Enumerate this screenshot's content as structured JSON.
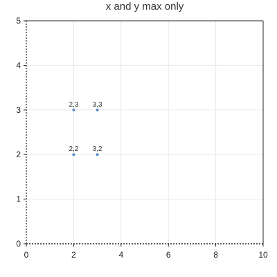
{
  "chart_data": {
    "type": "scatter",
    "title": "x and y max only",
    "xlabel": "",
    "ylabel": "",
    "xlim": [
      0,
      10
    ],
    "ylim": [
      0,
      5
    ],
    "x_ticks": [
      0,
      2,
      4,
      6,
      8,
      10
    ],
    "y_ticks": [
      0,
      1,
      2,
      3,
      4,
      5
    ],
    "grid": true,
    "series": [
      {
        "points": [
          {
            "x": 2,
            "y": 3,
            "label": "2,3"
          },
          {
            "x": 3,
            "y": 3,
            "label": "3,3"
          },
          {
            "x": 2,
            "y": 2,
            "label": "2,2"
          },
          {
            "x": 3,
            "y": 2,
            "label": "3,2"
          }
        ],
        "color": "#5b8ac8"
      }
    ],
    "colors": {
      "grid": "#e8e8e8",
      "axis": "#222222",
      "frame": "#222222"
    }
  }
}
